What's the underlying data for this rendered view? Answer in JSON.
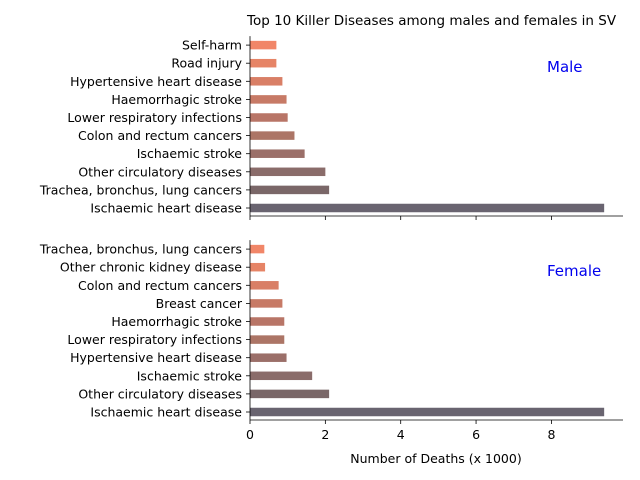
{
  "chart_data": {
    "type": "bar",
    "orientation": "horizontal",
    "title": "Top 10 Killer Diseases among males and females in SV",
    "xlabel": "Number of Deaths (x 1000)",
    "xlim": [
      0,
      9.9
    ],
    "xticks": [
      "0",
      "2",
      "4",
      "6",
      "8"
    ],
    "colors": [
      "#696470",
      "#7a6768",
      "#8a6c6a",
      "#9b6f69",
      "#ac7566",
      "#b87567",
      "#c77a66",
      "#d97f66",
      "#e68466",
      "#f18668"
    ],
    "panels": [
      {
        "label": "Male",
        "categories": [
          "Ischaemic heart disease",
          "Trachea, bronchus, lung cancers",
          "Other circulatory diseases",
          "Ischaemic stroke",
          "Colon and rectum cancers",
          "Lower respiratory infections",
          "Haemorrhagic stroke",
          "Hypertensive heart disease",
          "Road injury",
          "Self-harm"
        ],
        "values": [
          9.4,
          2.1,
          2.0,
          1.45,
          1.18,
          1.0,
          0.97,
          0.86,
          0.7,
          0.7
        ]
      },
      {
        "label": "Female",
        "categories": [
          "Ischaemic heart disease",
          "Other circulatory diseases",
          "Ischaemic stroke",
          "Hypertensive heart disease",
          "Lower respiratory infections",
          "Haemorrhagic stroke",
          "Breast cancer",
          "Colon and rectum cancers",
          "Other chronic kidney disease",
          "Trachea, bronchus, lung cancers"
        ],
        "values": [
          9.4,
          2.1,
          1.65,
          0.97,
          0.91,
          0.91,
          0.86,
          0.76,
          0.4,
          0.38
        ]
      }
    ]
  }
}
